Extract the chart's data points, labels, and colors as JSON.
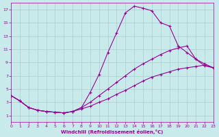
{
  "background_color": "#c8eaea",
  "line_color": "#990099",
  "xlabel": "Windchill (Refroidissement éolien,°C)",
  "xlim": [
    0,
    23
  ],
  "ylim": [
    0,
    18
  ],
  "xticks": [
    0,
    1,
    2,
    3,
    4,
    5,
    6,
    7,
    8,
    9,
    10,
    11,
    12,
    13,
    14,
    15,
    16,
    17,
    18,
    19,
    20,
    21,
    22,
    23
  ],
  "yticks": [
    1,
    3,
    5,
    7,
    9,
    11,
    13,
    15,
    17
  ],
  "grid_color": "#aacccc",
  "line1_x": [
    0,
    1,
    2,
    3,
    4,
    5,
    6,
    7,
    8,
    9,
    10,
    11,
    12,
    13,
    14,
    15,
    16,
    17,
    18,
    19,
    20,
    21,
    22,
    23
  ],
  "line1_y": [
    4.0,
    3.2,
    2.2,
    1.8,
    1.6,
    1.5,
    1.4,
    1.6,
    2.2,
    4.5,
    7.2,
    10.5,
    13.5,
    16.5,
    17.5,
    17.2,
    16.8,
    15.0,
    14.5,
    11.5,
    10.5,
    9.5,
    8.5,
    8.2
  ],
  "line2_x": [
    0,
    1,
    2,
    3,
    4,
    5,
    6,
    7,
    8,
    9,
    10,
    11,
    12,
    13,
    14,
    15,
    16,
    17,
    18,
    19,
    20,
    21,
    22,
    23
  ],
  "line2_y": [
    4.0,
    3.2,
    2.2,
    1.8,
    1.6,
    1.5,
    1.4,
    1.6,
    2.2,
    3.0,
    4.0,
    5.0,
    6.0,
    7.0,
    8.0,
    8.8,
    9.5,
    10.2,
    10.8,
    11.2,
    11.5,
    9.5,
    8.8,
    8.2
  ],
  "line3_x": [
    0,
    1,
    2,
    3,
    4,
    5,
    6,
    7,
    8,
    9,
    10,
    11,
    12,
    13,
    14,
    15,
    16,
    17,
    18,
    19,
    20,
    21,
    22,
    23
  ],
  "line3_y": [
    4.0,
    3.2,
    2.2,
    1.8,
    1.6,
    1.5,
    1.4,
    1.6,
    2.0,
    2.4,
    3.0,
    3.5,
    4.2,
    4.8,
    5.5,
    6.2,
    6.8,
    7.2,
    7.6,
    8.0,
    8.2,
    8.4,
    8.6,
    8.2
  ]
}
